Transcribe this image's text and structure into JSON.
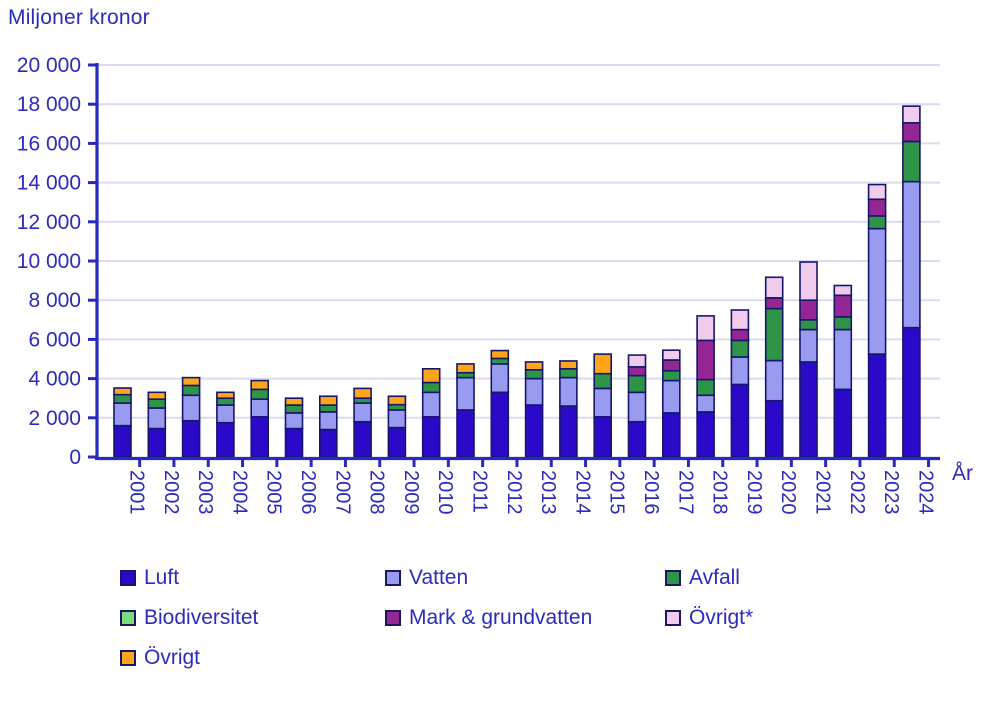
{
  "chart_data": {
    "type": "bar",
    "stacked": true,
    "title": "Miljoner kronor",
    "xlabel": "År",
    "ylabel": "",
    "ylim": [
      0,
      20000
    ],
    "ytick_step": 2000,
    "y_ticks": [
      "0",
      "2 000",
      "4 000",
      "6 000",
      "8 000",
      "10 000",
      "12 000",
      "14 000",
      "16 000",
      "18 000",
      "20 000"
    ],
    "grid": true,
    "legend_position": "bottom",
    "categories": [
      "2001",
      "2002",
      "2003",
      "2004",
      "2005",
      "2006",
      "2007",
      "2008",
      "2009",
      "2010",
      "2011",
      "2012",
      "2013",
      "2014",
      "2015",
      "2016",
      "2017",
      "2018",
      "2019",
      "2020",
      "2021",
      "2022",
      "2023",
      "2024"
    ],
    "series": [
      {
        "name": "Luft",
        "color": "#2a0ac8",
        "values": [
          1600,
          1450,
          1850,
          1750,
          2050,
          1450,
          1400,
          1800,
          1500,
          2050,
          2400,
          3300,
          2650,
          2600,
          2050,
          1800,
          2250,
          2300,
          3700,
          2870,
          4850,
          3450,
          5250,
          6600
        ]
      },
      {
        "name": "Vatten",
        "color": "#989bf0",
        "values": [
          1150,
          1050,
          1300,
          900,
          900,
          800,
          900,
          950,
          900,
          1250,
          1650,
          1450,
          1350,
          1450,
          1450,
          1500,
          1650,
          850,
          1400,
          2050,
          1650,
          3050,
          6400,
          7450
        ]
      },
      {
        "name": "Avfall",
        "color": "#2e9447",
        "values": [
          430,
          450,
          500,
          350,
          500,
          400,
          350,
          250,
          270,
          500,
          250,
          280,
          450,
          450,
          750,
          850,
          500,
          800,
          850,
          2650,
          500,
          650,
          650,
          2050
        ]
      },
      {
        "name": "Biodiversitet",
        "color": "#7cdc7c",
        "values": [
          0,
          0,
          0,
          0,
          0,
          0,
          0,
          0,
          0,
          0,
          0,
          0,
          0,
          0,
          0,
          0,
          0,
          0,
          0,
          0,
          0,
          0,
          0,
          0
        ]
      },
      {
        "name": "Mark & grundvatten",
        "color": "#952795",
        "values": [
          0,
          0,
          0,
          0,
          0,
          0,
          0,
          0,
          0,
          0,
          0,
          0,
          0,
          0,
          0,
          450,
          550,
          2000,
          550,
          550,
          1000,
          1100,
          850,
          950
        ]
      },
      {
        "name": "Övrigt*",
        "color": "#f0cbeb",
        "values": [
          0,
          0,
          0,
          0,
          0,
          0,
          0,
          0,
          0,
          0,
          0,
          0,
          0,
          0,
          0,
          600,
          500,
          1250,
          1000,
          1050,
          1950,
          500,
          750,
          850
        ]
      },
      {
        "name": "Övrigt",
        "color": "#ffa519",
        "values": [
          340,
          350,
          400,
          300,
          450,
          350,
          450,
          500,
          430,
          700,
          450,
          400,
          400,
          400,
          1000,
          0,
          0,
          0,
          0,
          0,
          0,
          0,
          0,
          0
        ]
      }
    ],
    "colors": {
      "text": "#2b2bc0",
      "axis": "#2929be",
      "grid": "#dadaf2",
      "bar_border": "#16166b",
      "background": "#ffffff"
    }
  }
}
